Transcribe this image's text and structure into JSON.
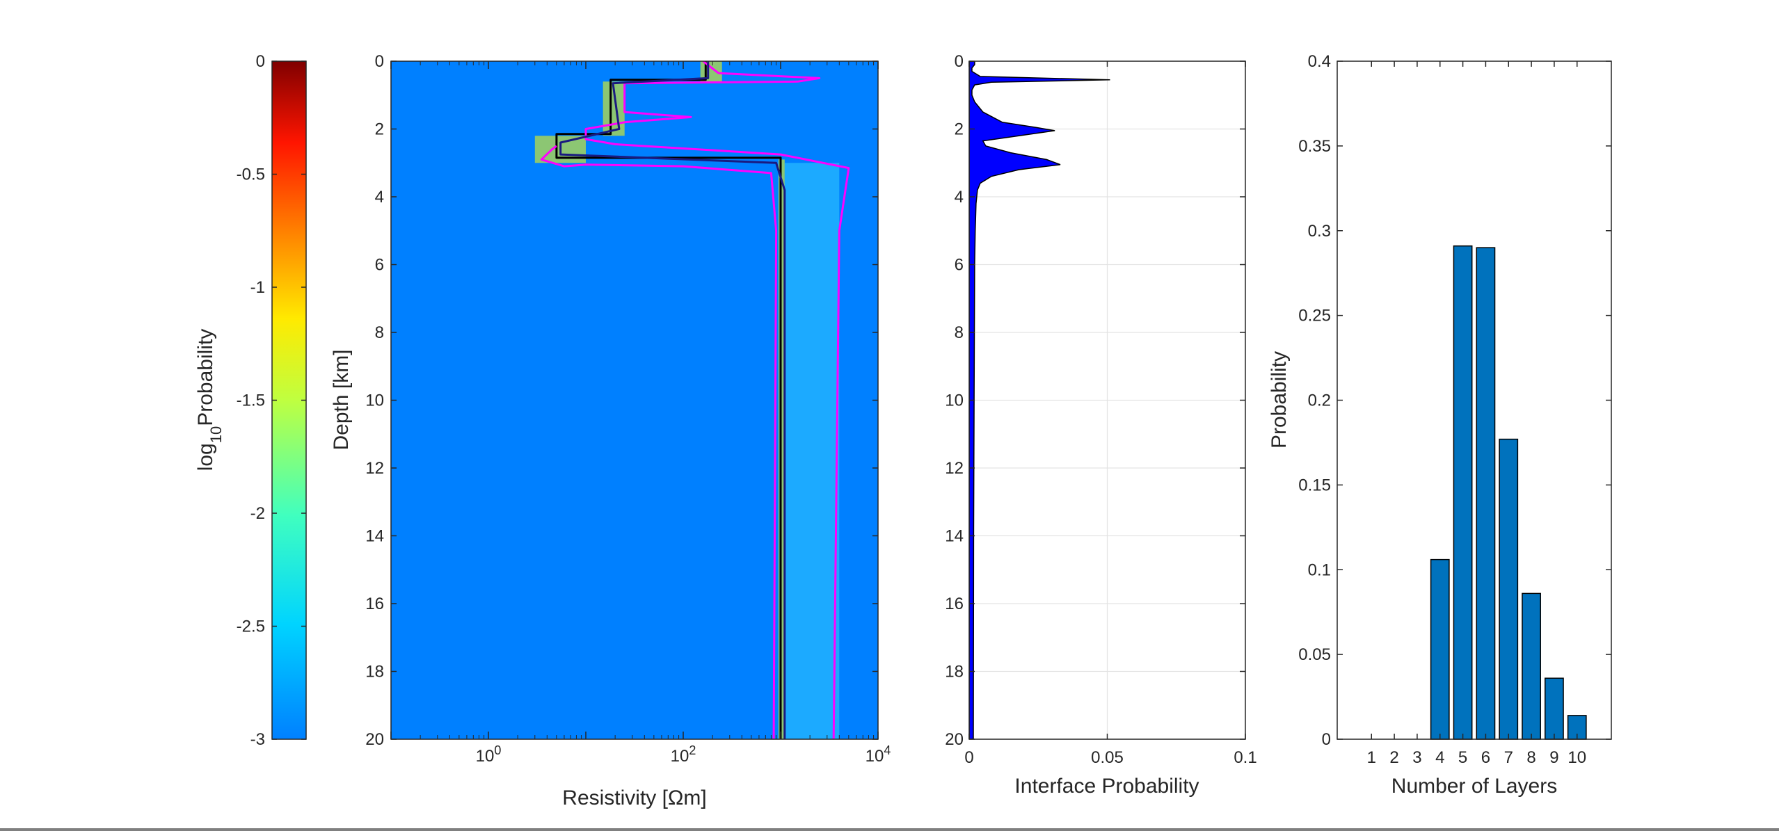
{
  "chart_data": [
    {
      "type": "colorbar",
      "ylabel_base": "log",
      "ylabel_sub": "10",
      "ylabel_rest": "Probability",
      "ylim": [
        -3,
        0
      ],
      "yticks": [
        0,
        -0.5,
        -1,
        -1.5,
        -2,
        -2.5,
        -3
      ],
      "ytick_labels": [
        "0",
        "-0.5",
        "-1",
        "-1.5",
        "-2",
        "-2.5",
        "-3"
      ],
      "colormap": "jet"
    },
    {
      "type": "heatmap",
      "xlabel": "Resistivity [Ωm]",
      "ylabel": "Depth [km]",
      "xscale": "log",
      "xlim": [
        0.1,
        10000
      ],
      "ylim": [
        0,
        20
      ],
      "y_reversed": true,
      "xticks": [
        1,
        100,
        10000
      ],
      "xtick_base": "10",
      "xtick_exponents": [
        "0",
        "2",
        "4"
      ],
      "yticks": [
        0,
        2,
        4,
        6,
        8,
        10,
        12,
        14,
        16,
        18,
        20
      ],
      "ytick_labels": [
        "0",
        "2",
        "4",
        "6",
        "8",
        "10",
        "12",
        "14",
        "16",
        "18",
        "20"
      ],
      "background_color": "#0080ff",
      "series": [
        {
          "color": "#000000",
          "points": [
            [
              170,
              0
            ],
            [
              170,
              0.55
            ],
            [
              18,
              0.55
            ],
            [
              18,
              2.15
            ],
            [
              5,
              2.15
            ],
            [
              5,
              2.85
            ],
            [
              1000,
              2.85
            ],
            [
              1000,
              20
            ]
          ]
        },
        {
          "color": "#ff00ff",
          "points": [
            [
              5,
              2.5
            ],
            [
              4.5,
              2.6
            ],
            [
              3.5,
              2.9
            ],
            [
              6,
              3.1
            ],
            [
              10,
              3.05
            ],
            [
              100,
              3.1
            ],
            [
              800,
              3.3
            ],
            [
              900,
              5
            ],
            [
              850,
              20
            ]
          ]
        },
        {
          "color": "#ff00ff",
          "points": [
            [
              160,
              0
            ],
            [
              230,
              0.35
            ],
            [
              2500,
              0.5
            ],
            [
              1500,
              0.6
            ],
            [
              25,
              0.65
            ],
            [
              25,
              1.5
            ],
            [
              120,
              1.65
            ],
            [
              25,
              1.8
            ],
            [
              10,
              2
            ],
            [
              10,
              2.3
            ],
            [
              20,
              2.45
            ],
            [
              1000,
              2.75
            ],
            [
              5000,
              3.15
            ],
            [
              4000,
              5
            ],
            [
              3500,
              20
            ]
          ]
        },
        {
          "color": "#1a1a80",
          "points": [
            [
              180,
              0
            ],
            [
              180,
              0.5
            ],
            [
              19,
              0.65
            ],
            [
              22,
              2
            ],
            [
              5.5,
              2.4
            ],
            [
              5.5,
              2.75
            ],
            [
              900,
              3
            ],
            [
              1100,
              3.8
            ],
            [
              1100,
              20
            ]
          ]
        }
      ],
      "hot_zones": [
        {
          "x": [
            150,
            250
          ],
          "y": [
            0,
            0.6
          ],
          "color": "#ffff00"
        },
        {
          "x": [
            15,
            25
          ],
          "y": [
            0.6,
            2.2
          ],
          "color": "#ffff00"
        },
        {
          "x": [
            3,
            10
          ],
          "y": [
            2.2,
            3.0
          ],
          "color": "#ffff00"
        },
        {
          "x": [
            950,
            1100
          ],
          "y": [
            2.9,
            20
          ],
          "color": "#ffff00"
        },
        {
          "x": [
            1100,
            4000
          ],
          "y": [
            3.0,
            20
          ],
          "color": "#33ccff"
        }
      ]
    },
    {
      "type": "area",
      "xlabel": "Interface Probability",
      "ylabel": "",
      "xlim": [
        0,
        0.1
      ],
      "ylim": [
        0,
        20
      ],
      "y_reversed": true,
      "grid": true,
      "xticks": [
        0,
        0.05,
        0.1
      ],
      "xtick_labels": [
        "0",
        "0.05",
        "0.1"
      ],
      "yticks": [
        0,
        2,
        4,
        6,
        8,
        10,
        12,
        14,
        16,
        18,
        20
      ],
      "ytick_labels": [
        "0",
        "2",
        "4",
        "6",
        "8",
        "10",
        "12",
        "14",
        "16",
        "18",
        "20"
      ],
      "fill_color": "#0000ff",
      "depth": [
        0,
        0.1,
        0.2,
        0.3,
        0.45,
        0.55,
        0.62,
        0.7,
        0.85,
        1.0,
        1.2,
        1.5,
        1.8,
        1.95,
        2.05,
        2.2,
        2.35,
        2.5,
        2.7,
        2.9,
        3.05,
        3.2,
        3.4,
        3.6,
        3.8,
        4.2,
        5,
        6,
        8,
        10,
        14,
        20
      ],
      "values": [
        0.002,
        0.002,
        0.001,
        0.001,
        0.004,
        0.051,
        0.008,
        0.002,
        0.001,
        0.001,
        0.002,
        0.005,
        0.012,
        0.024,
        0.031,
        0.018,
        0.005,
        0.006,
        0.015,
        0.028,
        0.033,
        0.018,
        0.008,
        0.004,
        0.003,
        0.0025,
        0.0022,
        0.002,
        0.0019,
        0.0018,
        0.0016,
        0.0015
      ]
    },
    {
      "type": "bar",
      "xlabel": "Number of Layers",
      "ylabel": "Probability",
      "categories": [
        1,
        2,
        3,
        4,
        5,
        6,
        7,
        8,
        9,
        10
      ],
      "values": [
        0,
        0,
        0,
        0.106,
        0.291,
        0.29,
        0.177,
        0.086,
        0.036,
        0.014
      ],
      "xlim": [
        -0.5,
        11.5
      ],
      "ylim": [
        0,
        0.4
      ],
      "yticks": [
        0,
        0.05,
        0.1,
        0.15,
        0.2,
        0.25,
        0.3,
        0.35,
        0.4
      ],
      "ytick_labels": [
        "0",
        "0.05",
        "0.1",
        "0.15",
        "0.2",
        "0.25",
        "0.3",
        "0.35",
        "0.4"
      ],
      "bar_color": "#0072bd"
    }
  ]
}
